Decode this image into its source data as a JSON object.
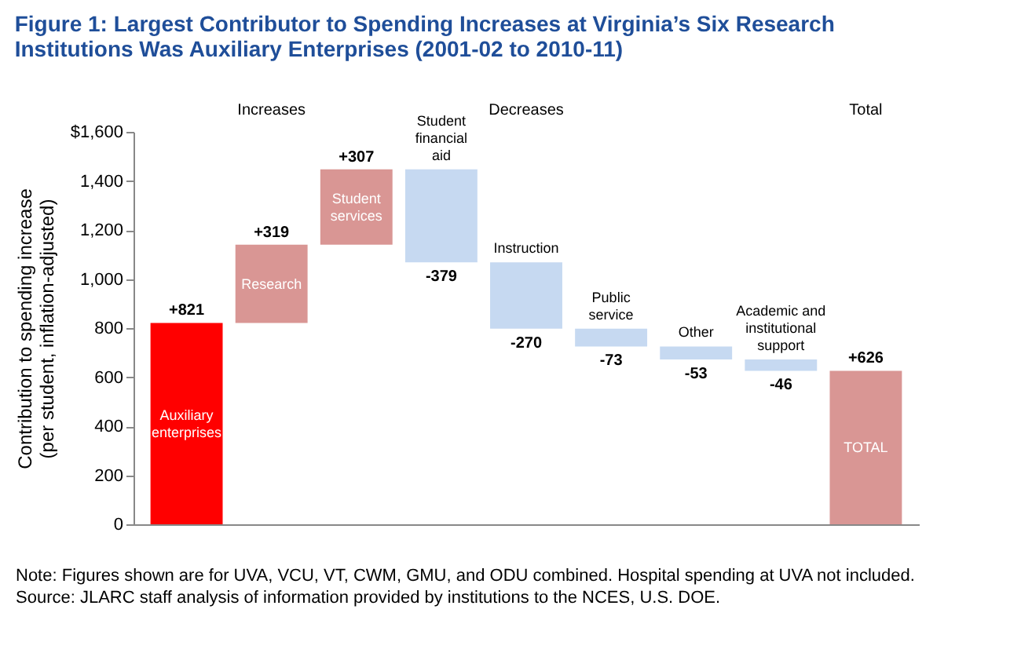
{
  "chart_data": {
    "type": "bar",
    "title": "Figure 1: Largest Contributor to Spending Increases at Virginia’s Six Research\nInstitutions Was Auxiliary Enterprises (2001-02 to 2010-11)",
    "ylabel": "Contribution to spending increase\n(per student, inflation-adjusted)",
    "categories": [
      "Auxiliary enterprises",
      "Research",
      "Student services",
      "Student financial aid",
      "Instruction",
      "Public service",
      "Other",
      "Academic and institutional support",
      "TOTAL"
    ],
    "values": [
      821,
      319,
      307,
      -379,
      -270,
      -73,
      -53,
      -46,
      626
    ],
    "base": [
      0,
      821,
      1140,
      1447,
      1068,
      798,
      725,
      672,
      0
    ],
    "colors": [
      "#ff0000",
      "#d99694",
      "#d99694",
      "#c6d9f1",
      "#c6d9f1",
      "#c6d9f1",
      "#c6d9f1",
      "#c6d9f1",
      "#d99694"
    ],
    "value_labels": [
      "+821",
      "+319",
      "+307",
      "-379",
      "-270",
      "-73",
      "-53",
      "-46",
      "+626"
    ],
    "ylim": [
      0,
      1600
    ],
    "yticks": [
      0,
      200,
      400,
      600,
      800,
      {
        "value": 1000,
        "label": "1,000"
      },
      {
        "value": 1200,
        "label": "1,200"
      },
      {
        "value": 1400,
        "label": "1,400"
      },
      {
        "value": 1600,
        "label": "$1,600"
      }
    ],
    "tick_labels": "y",
    "grid": false,
    "annotations": [
      "Increases",
      "Decreases",
      "Total",
      "Note: Figures shown are for UVA, VCU, VT, CWM, GMU, and ODU combined. Hospital spending at UVA not included.",
      "Source: JLARC staff analysis of information provided by institutions to the NCES, U.S. DOE."
    ]
  }
}
